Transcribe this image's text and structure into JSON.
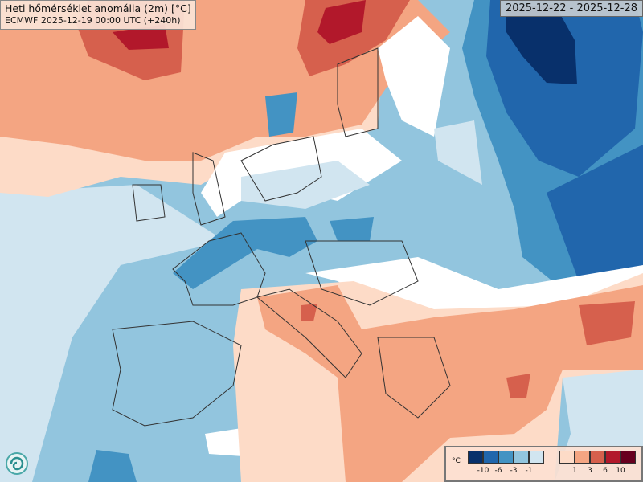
{
  "title": "Heti hőmérséklet anomália (2m) [°C]",
  "subtitle": "ECMWF 2025-12-19 00:00 UTC (+240h)",
  "date_range": "2025-12-22 - 2025-12-28",
  "legend": {
    "unit": "°C",
    "cold_colors": [
      "#08306b",
      "#2166ac",
      "#4393c3",
      "#92c5de",
      "#d1e5f0"
    ],
    "warm_colors": [
      "#fddbc7",
      "#f4a582",
      "#d6604d",
      "#b2182b",
      "#67001f"
    ],
    "cold_ticks": [
      "-10",
      "-6",
      "-3",
      "-1"
    ],
    "warm_ticks": [
      "1",
      "3",
      "6",
      "10"
    ]
  },
  "logo": "ECMWF"
}
